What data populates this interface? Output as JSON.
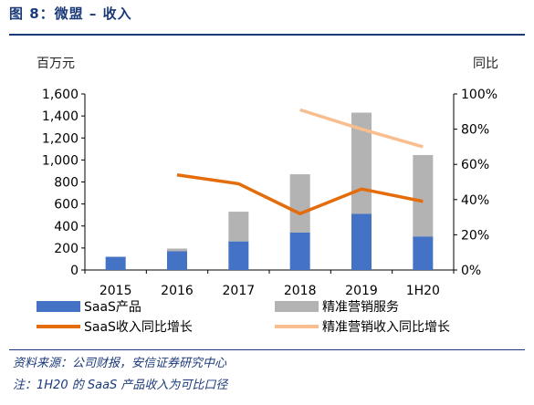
{
  "title": "图 8：微盟 – 收入",
  "source_note": "资料来源：公司财报，安信证券研究中心",
  "footnote": "注：1H20 的 SaaS 产品收入为可比口径",
  "chart_data": {
    "type": "bar",
    "stacked": true,
    "categories": [
      "2015",
      "2016",
      "2017",
      "2018",
      "2019",
      "1H20"
    ],
    "y_left_unit": "百万元",
    "y_right_unit": "同比",
    "y_left_ticks": [
      "0",
      "200",
      "400",
      "600",
      "800",
      "1,000",
      "1,200",
      "1,400",
      "1,600"
    ],
    "y_right_ticks": [
      "0%",
      "20%",
      "40%",
      "60%",
      "80%",
      "100%"
    ],
    "ylim_left": [
      0,
      1600
    ],
    "ylim_right": [
      0,
      100
    ],
    "legend_position": "bottom",
    "series": [
      {
        "name": "SaaS产品",
        "type": "bar",
        "axis": "left",
        "color": "#4472c4",
        "values": [
          120,
          170,
          260,
          340,
          510,
          305
        ]
      },
      {
        "name": "精准营销服务",
        "type": "bar",
        "axis": "left",
        "color": "#b3b3b3",
        "values": [
          0,
          25,
          270,
          530,
          920,
          740
        ]
      },
      {
        "name": "SaaS收入同比增长",
        "type": "line",
        "axis": "right",
        "color": "#e46c0a",
        "values": [
          null,
          54,
          49,
          32,
          46,
          39
        ]
      },
      {
        "name": "精准营销收入同比增长",
        "type": "line",
        "axis": "right",
        "color": "#f9be8f",
        "values": [
          null,
          null,
          null,
          91,
          80,
          70
        ]
      }
    ]
  }
}
